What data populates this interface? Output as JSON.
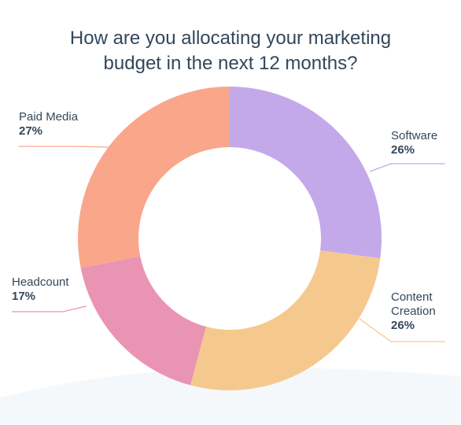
{
  "title_lines": [
    "How are you allocating your marketing",
    "budget in the next 12 months?"
  ],
  "chart_data": {
    "type": "pie",
    "variant": "donut",
    "title": "How are you allocating your marketing budget in the next 12 months?",
    "categories": [
      "Software",
      "Content Creation",
      "Headcount",
      "Paid Media"
    ],
    "values": [
      26,
      26,
      17,
      27
    ],
    "value_labels": [
      "26%",
      "26%",
      "17%",
      "27%"
    ],
    "unit": "%",
    "colors": [
      "#c3a9ea",
      "#f5c98e",
      "#e994b3",
      "#f9a68b"
    ],
    "label_lines": [
      [
        "Software"
      ],
      [
        "Content",
        "Creation"
      ],
      [
        "Headcount"
      ],
      [
        "Paid Media"
      ]
    ]
  }
}
